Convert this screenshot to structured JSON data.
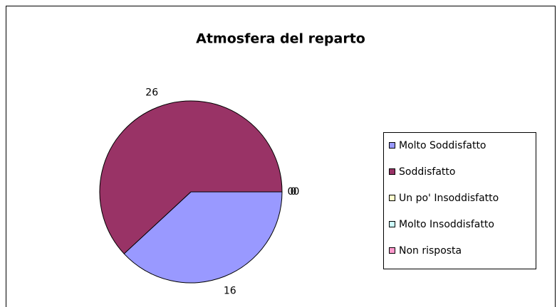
{
  "chart_data": {
    "type": "pie",
    "title": "Atmosfera del reparto",
    "categories": [
      "Molto Soddisfatto",
      "Soddisfatto",
      "Un po' Insoddisfatto",
      "Molto Insoddisfatto",
      "Non risposta"
    ],
    "values": [
      16,
      26,
      0,
      0,
      0
    ],
    "colors": [
      "#9999ff",
      "#993366",
      "#ffffcc",
      "#ccffff",
      "#ff99cc"
    ],
    "legend": "right"
  }
}
